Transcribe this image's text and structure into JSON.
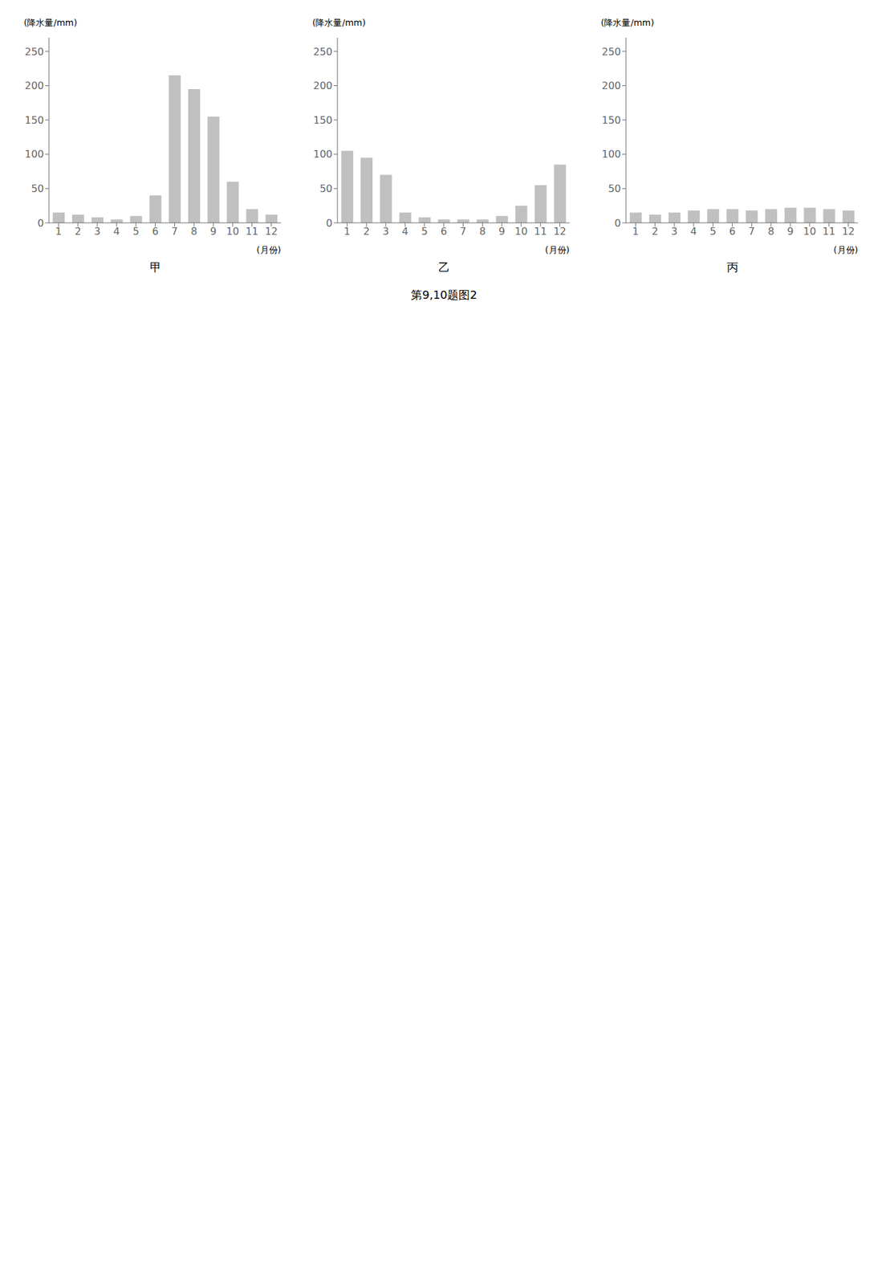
{
  "title": "第9,10题图2",
  "chart_data": [
    {
      "type": "bar",
      "title": "甲",
      "x_label": "(月份)",
      "y_label": "(降水量/mm)",
      "categories": [
        "1",
        "2",
        "3",
        "4",
        "5",
        "6",
        "7",
        "8",
        "9",
        "10",
        "11",
        "12"
      ],
      "values": [
        15,
        12,
        8,
        5,
        10,
        40,
        215,
        195,
        155,
        60,
        20,
        12
      ],
      "color": "#c0c0c0",
      "ylim": [
        0,
        270
      ],
      "yticks": [
        0,
        50,
        100,
        150,
        200,
        250
      ],
      "grid": false
    },
    {
      "type": "bar",
      "title": "乙",
      "x_label": "(月份)",
      "y_label": "(降水量/mm)",
      "categories": [
        "1",
        "2",
        "3",
        "4",
        "5",
        "6",
        "7",
        "8",
        "9",
        "10",
        "11",
        "12"
      ],
      "values": [
        105,
        95,
        70,
        15,
        8,
        5,
        5,
        5,
        10,
        25,
        55,
        85
      ],
      "color": "#c0c0c0",
      "ylim": [
        0,
        270
      ],
      "yticks": [
        0,
        50,
        100,
        150,
        200,
        250
      ],
      "grid": false
    },
    {
      "type": "bar",
      "title": "丙",
      "x_label": "(月份)",
      "y_label": "(降水量/mm)",
      "categories": [
        "1",
        "2",
        "3",
        "4",
        "5",
        "6",
        "7",
        "8",
        "9",
        "10",
        "11",
        "12"
      ],
      "values": [
        15,
        12,
        15,
        18,
        20,
        20,
        18,
        20,
        22,
        22,
        20,
        18
      ],
      "color": "#c0c0c0",
      "ylim": [
        0,
        270
      ],
      "yticks": [
        0,
        50,
        100,
        150,
        200,
        250
      ],
      "grid": false
    }
  ]
}
